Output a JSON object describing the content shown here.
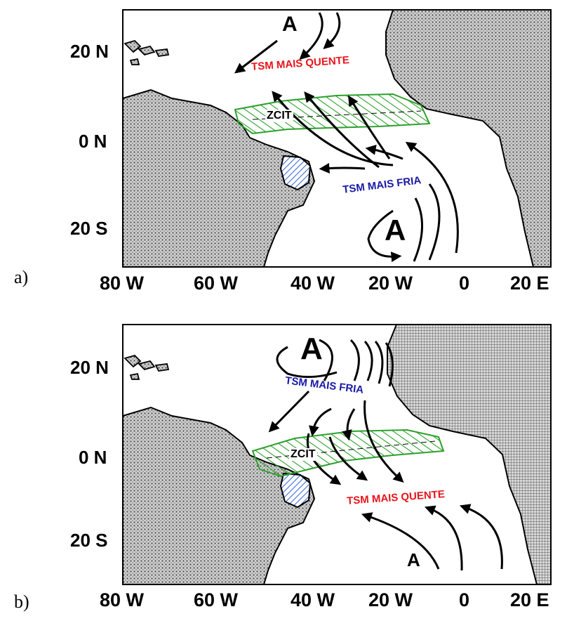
{
  "colors": {
    "land_fill": "#b8b8b8",
    "itcz_hatch": "#2ca02c",
    "northeast_brazil_hatch": "#2b5fd9",
    "warm_label": "#e8141b",
    "cold_label": "#1a1aa6",
    "arrows": "#000000"
  },
  "panels": [
    {
      "letter": "a)",
      "high_pressure_labels": [
        "A",
        "A"
      ],
      "warm_sst_label": "TSM MAIS QUENTE",
      "cold_sst_label": "TSM MAIS FRIA",
      "itcz_label": "ZCIT",
      "lat_labels": [
        "20 N",
        "0 N",
        "20 S"
      ],
      "lon_labels": [
        "80 W",
        "60 W",
        "40 W",
        "20 W",
        "0",
        "20 E"
      ]
    },
    {
      "letter": "b)",
      "high_pressure_labels": [
        "A",
        "A"
      ],
      "warm_sst_label": "TSM MAIS QUENTE",
      "cold_sst_label": "TSM MAIS FRIA",
      "itcz_label": "ZCIT",
      "lat_labels": [
        "20 N",
        "0 N",
        "20 S"
      ],
      "lon_labels": [
        "80 W",
        "60 W",
        "40 W",
        "20 W",
        "0",
        "20 E"
      ]
    }
  ]
}
